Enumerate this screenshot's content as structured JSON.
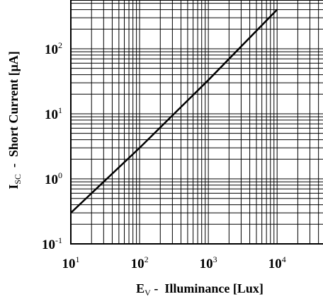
{
  "chart_data": {
    "type": "line",
    "x_scale": "log",
    "y_scale": "log",
    "xlim": [
      10,
      56234
    ],
    "ylim": [
      0.1,
      562
    ],
    "grid": true,
    "x_ticks": [
      {
        "value": 10,
        "base": "10",
        "exp": "1"
      },
      {
        "value": 100,
        "base": "10",
        "exp": "2"
      },
      {
        "value": 1000,
        "base": "10",
        "exp": "3"
      },
      {
        "value": 10000,
        "base": "10",
        "exp": "4"
      }
    ],
    "y_ticks": [
      {
        "value": 0.1,
        "base": "10",
        "exp": "-1"
      },
      {
        "value": 1,
        "base": "10",
        "exp": "0"
      },
      {
        "value": 10,
        "base": "10",
        "exp": "1"
      },
      {
        "value": 100,
        "base": "10",
        "exp": "2"
      }
    ],
    "xlabel": {
      "main": "E",
      "sub": "V",
      "rest": " -  Illuminance [Lux]"
    },
    "ylabel": {
      "main": "I",
      "sub": "SC",
      "rest": "  -  Short Current [μA]"
    },
    "series": [
      {
        "x": [
          10,
          100,
          1000,
          10000
        ],
        "y": [
          0.3,
          3.0,
          33,
          400
        ]
      }
    ]
  }
}
